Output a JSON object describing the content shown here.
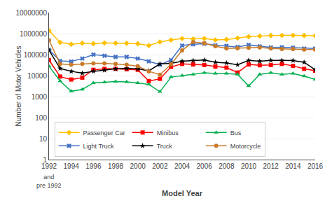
{
  "chart_data": {
    "type": "line",
    "x": [
      1992,
      1993,
      1994,
      1995,
      1996,
      1997,
      1998,
      1999,
      2000,
      2001,
      2002,
      2003,
      2004,
      2005,
      2006,
      2007,
      2008,
      2009,
      2010,
      2011,
      2012,
      2013,
      2014,
      2015,
      2016
    ],
    "series": [
      {
        "name": "Passenger Car",
        "color": "#FFC000",
        "marker": "diamond",
        "values": [
          1400000,
          380000,
          310000,
          350000,
          330000,
          360000,
          350000,
          345000,
          330000,
          270000,
          400000,
          500000,
          580000,
          560000,
          580000,
          500000,
          520000,
          610000,
          720000,
          760000,
          810000,
          820000,
          830000,
          810000,
          790000
        ]
      },
      {
        "name": "Minibus",
        "color": "#FF0000",
        "marker": "square",
        "values": [
          55000,
          9000,
          6500,
          8000,
          19000,
          21000,
          21000,
          20000,
          19000,
          5500,
          7000,
          26000,
          36000,
          34000,
          32000,
          27000,
          24000,
          14000,
          34000,
          31000,
          32000,
          36000,
          29000,
          21000,
          17000
        ]
      },
      {
        "name": "Bus",
        "color": "#00B050",
        "marker": "triangle-up",
        "values": [
          28000,
          5500,
          1800,
          2200,
          4500,
          4800,
          5200,
          5000,
          4500,
          3800,
          1700,
          8500,
          10000,
          11500,
          13500,
          12500,
          12500,
          11500,
          3200,
          11500,
          13500,
          11500,
          12500,
          9500,
          6500
        ]
      },
      {
        "name": "Light Truck",
        "color": "#4472C4",
        "marker": "x",
        "values": [
          170000,
          50000,
          47000,
          65000,
          100000,
          88000,
          78000,
          78000,
          65000,
          48000,
          33000,
          55000,
          270000,
          310000,
          330000,
          280000,
          260000,
          230000,
          290000,
          250000,
          220000,
          225000,
          215000,
          195000,
          195000
        ]
      },
      {
        "name": "Truck",
        "color": "#000000",
        "marker": "star",
        "values": [
          160000,
          22000,
          16000,
          13000,
          16000,
          18000,
          21000,
          22000,
          21000,
          17000,
          36000,
          38000,
          48000,
          52000,
          55000,
          43000,
          40000,
          33000,
          53000,
          48000,
          53000,
          53000,
          52000,
          43000,
          19000
        ]
      },
      {
        "name": "Motorcycle",
        "color": "#C97B2A",
        "marker": "circle",
        "values": [
          480000,
          36000,
          33000,
          36000,
          38000,
          38000,
          36000,
          33000,
          28000,
          16000,
          11000,
          34000,
          160000,
          400000,
          350000,
          250000,
          195000,
          200000,
          210000,
          220000,
          195000,
          185000,
          185000,
          175000,
          175000
        ]
      }
    ],
    "xlabel": "Model Year",
    "ylabel": "Number of Motor Vehicles",
    "log": "y",
    "xlim": [
      1992,
      2016
    ],
    "xticks": [
      1992,
      1994,
      1996,
      1998,
      2000,
      2002,
      2004,
      2006,
      2008,
      2010,
      2012,
      2014,
      2016
    ],
    "ylim": [
      1,
      10000000
    ],
    "yticks": [
      1,
      10,
      100,
      1000,
      10000,
      100000,
      1000000,
      10000000
    ],
    "grid": true,
    "legend": "lower left",
    "annotations": [
      {
        "text": "and\npre 1992",
        "x": 1992
      }
    ]
  }
}
